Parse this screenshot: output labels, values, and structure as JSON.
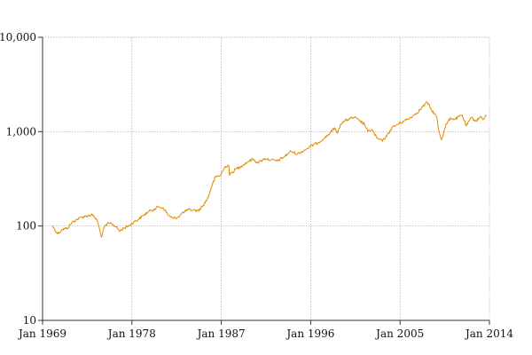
{
  "chart_data": {
    "type": "line",
    "title": "",
    "xlabel": "",
    "ylabel": "",
    "yscale": "log",
    "grid": true,
    "xlim": [
      "1969-01",
      "2014-01"
    ],
    "ylim": [
      10,
      10000
    ],
    "x_ticks": [
      {
        "value": "1969-01",
        "label": "Jan 1969"
      },
      {
        "value": "1978-01",
        "label": "Jan 1978"
      },
      {
        "value": "1987-01",
        "label": "Jan 1987"
      },
      {
        "value": "1996-01",
        "label": "Jan 1996"
      },
      {
        "value": "2005-01",
        "label": "Jan 2005"
      },
      {
        "value": "2014-01",
        "label": "Jan 2014"
      }
    ],
    "y_ticks": [
      {
        "value": 10,
        "label": "10"
      },
      {
        "value": 100,
        "label": "100"
      },
      {
        "value": 1000,
        "label": "1,000"
      },
      {
        "value": 10000,
        "label": "10,000"
      }
    ],
    "series": [
      {
        "color": "#e08a00",
        "points": [
          [
            "1970-01",
            100
          ],
          [
            "1970-07",
            83
          ],
          [
            "1971-01",
            92
          ],
          [
            "1971-07",
            95
          ],
          [
            "1972-01",
            110
          ],
          [
            "1972-07",
            118
          ],
          [
            "1973-01",
            125
          ],
          [
            "1973-07",
            128
          ],
          [
            "1974-01",
            132
          ],
          [
            "1974-07",
            115
          ],
          [
            "1974-09",
            100
          ],
          [
            "1974-12",
            76
          ],
          [
            "1975-03",
            95
          ],
          [
            "1975-07",
            105
          ],
          [
            "1975-12",
            107
          ],
          [
            "1976-06",
            98
          ],
          [
            "1976-10",
            88
          ],
          [
            "1977-03",
            95
          ],
          [
            "1977-09",
            100
          ],
          [
            "1978-03",
            110
          ],
          [
            "1978-09",
            118
          ],
          [
            "1979-03",
            130
          ],
          [
            "1979-09",
            142
          ],
          [
            "1980-03",
            150
          ],
          [
            "1980-09",
            160
          ],
          [
            "1981-03",
            155
          ],
          [
            "1981-09",
            130
          ],
          [
            "1982-03",
            120
          ],
          [
            "1982-09",
            125
          ],
          [
            "1983-03",
            140
          ],
          [
            "1983-09",
            148
          ],
          [
            "1984-03",
            148
          ],
          [
            "1984-09",
            145
          ],
          [
            "1985-03",
            165
          ],
          [
            "1985-09",
            200
          ],
          [
            "1986-01",
            260
          ],
          [
            "1986-06",
            330
          ],
          [
            "1986-12",
            345
          ],
          [
            "1987-06",
            430
          ],
          [
            "1987-10",
            440
          ],
          [
            "1987-11",
            345
          ],
          [
            "1988-06",
            400
          ],
          [
            "1989-01",
            430
          ],
          [
            "1989-09",
            480
          ],
          [
            "1990-03",
            510
          ],
          [
            "1990-09",
            470
          ],
          [
            "1991-06",
            520
          ],
          [
            "1992-01",
            500
          ],
          [
            "1992-09",
            490
          ],
          [
            "1993-06",
            550
          ],
          [
            "1994-01",
            620
          ],
          [
            "1994-09",
            580
          ],
          [
            "1995-06",
            640
          ],
          [
            "1996-01",
            700
          ],
          [
            "1996-09",
            760
          ],
          [
            "1997-06",
            860
          ],
          [
            "1998-01",
            980
          ],
          [
            "1998-06",
            1100
          ],
          [
            "1998-09",
            960
          ],
          [
            "1999-01",
            1200
          ],
          [
            "1999-06",
            1300
          ],
          [
            "2000-01",
            1380
          ],
          [
            "2000-06",
            1420
          ],
          [
            "2000-12",
            1300
          ],
          [
            "2001-06",
            1200
          ],
          [
            "2001-10",
            1000
          ],
          [
            "2002-03",
            1050
          ],
          [
            "2002-09",
            850
          ],
          [
            "2003-03",
            800
          ],
          [
            "2003-09",
            900
          ],
          [
            "2004-03",
            1100
          ],
          [
            "2004-09",
            1180
          ],
          [
            "2005-06",
            1300
          ],
          [
            "2006-01",
            1400
          ],
          [
            "2006-06",
            1500
          ],
          [
            "2007-01",
            1700
          ],
          [
            "2007-07",
            1950
          ],
          [
            "2007-10",
            2050
          ],
          [
            "2008-03",
            1700
          ],
          [
            "2008-09",
            1450
          ],
          [
            "2008-12",
            1000
          ],
          [
            "2009-03",
            820
          ],
          [
            "2009-08",
            1150
          ],
          [
            "2010-02",
            1400
          ],
          [
            "2010-07",
            1350
          ],
          [
            "2011-04",
            1500
          ],
          [
            "2011-09",
            1150
          ],
          [
            "2012-03",
            1400
          ],
          [
            "2012-09",
            1300
          ],
          [
            "2013-03",
            1450
          ],
          [
            "2013-06",
            1350
          ],
          [
            "2013-09",
            1500
          ]
        ]
      }
    ]
  }
}
